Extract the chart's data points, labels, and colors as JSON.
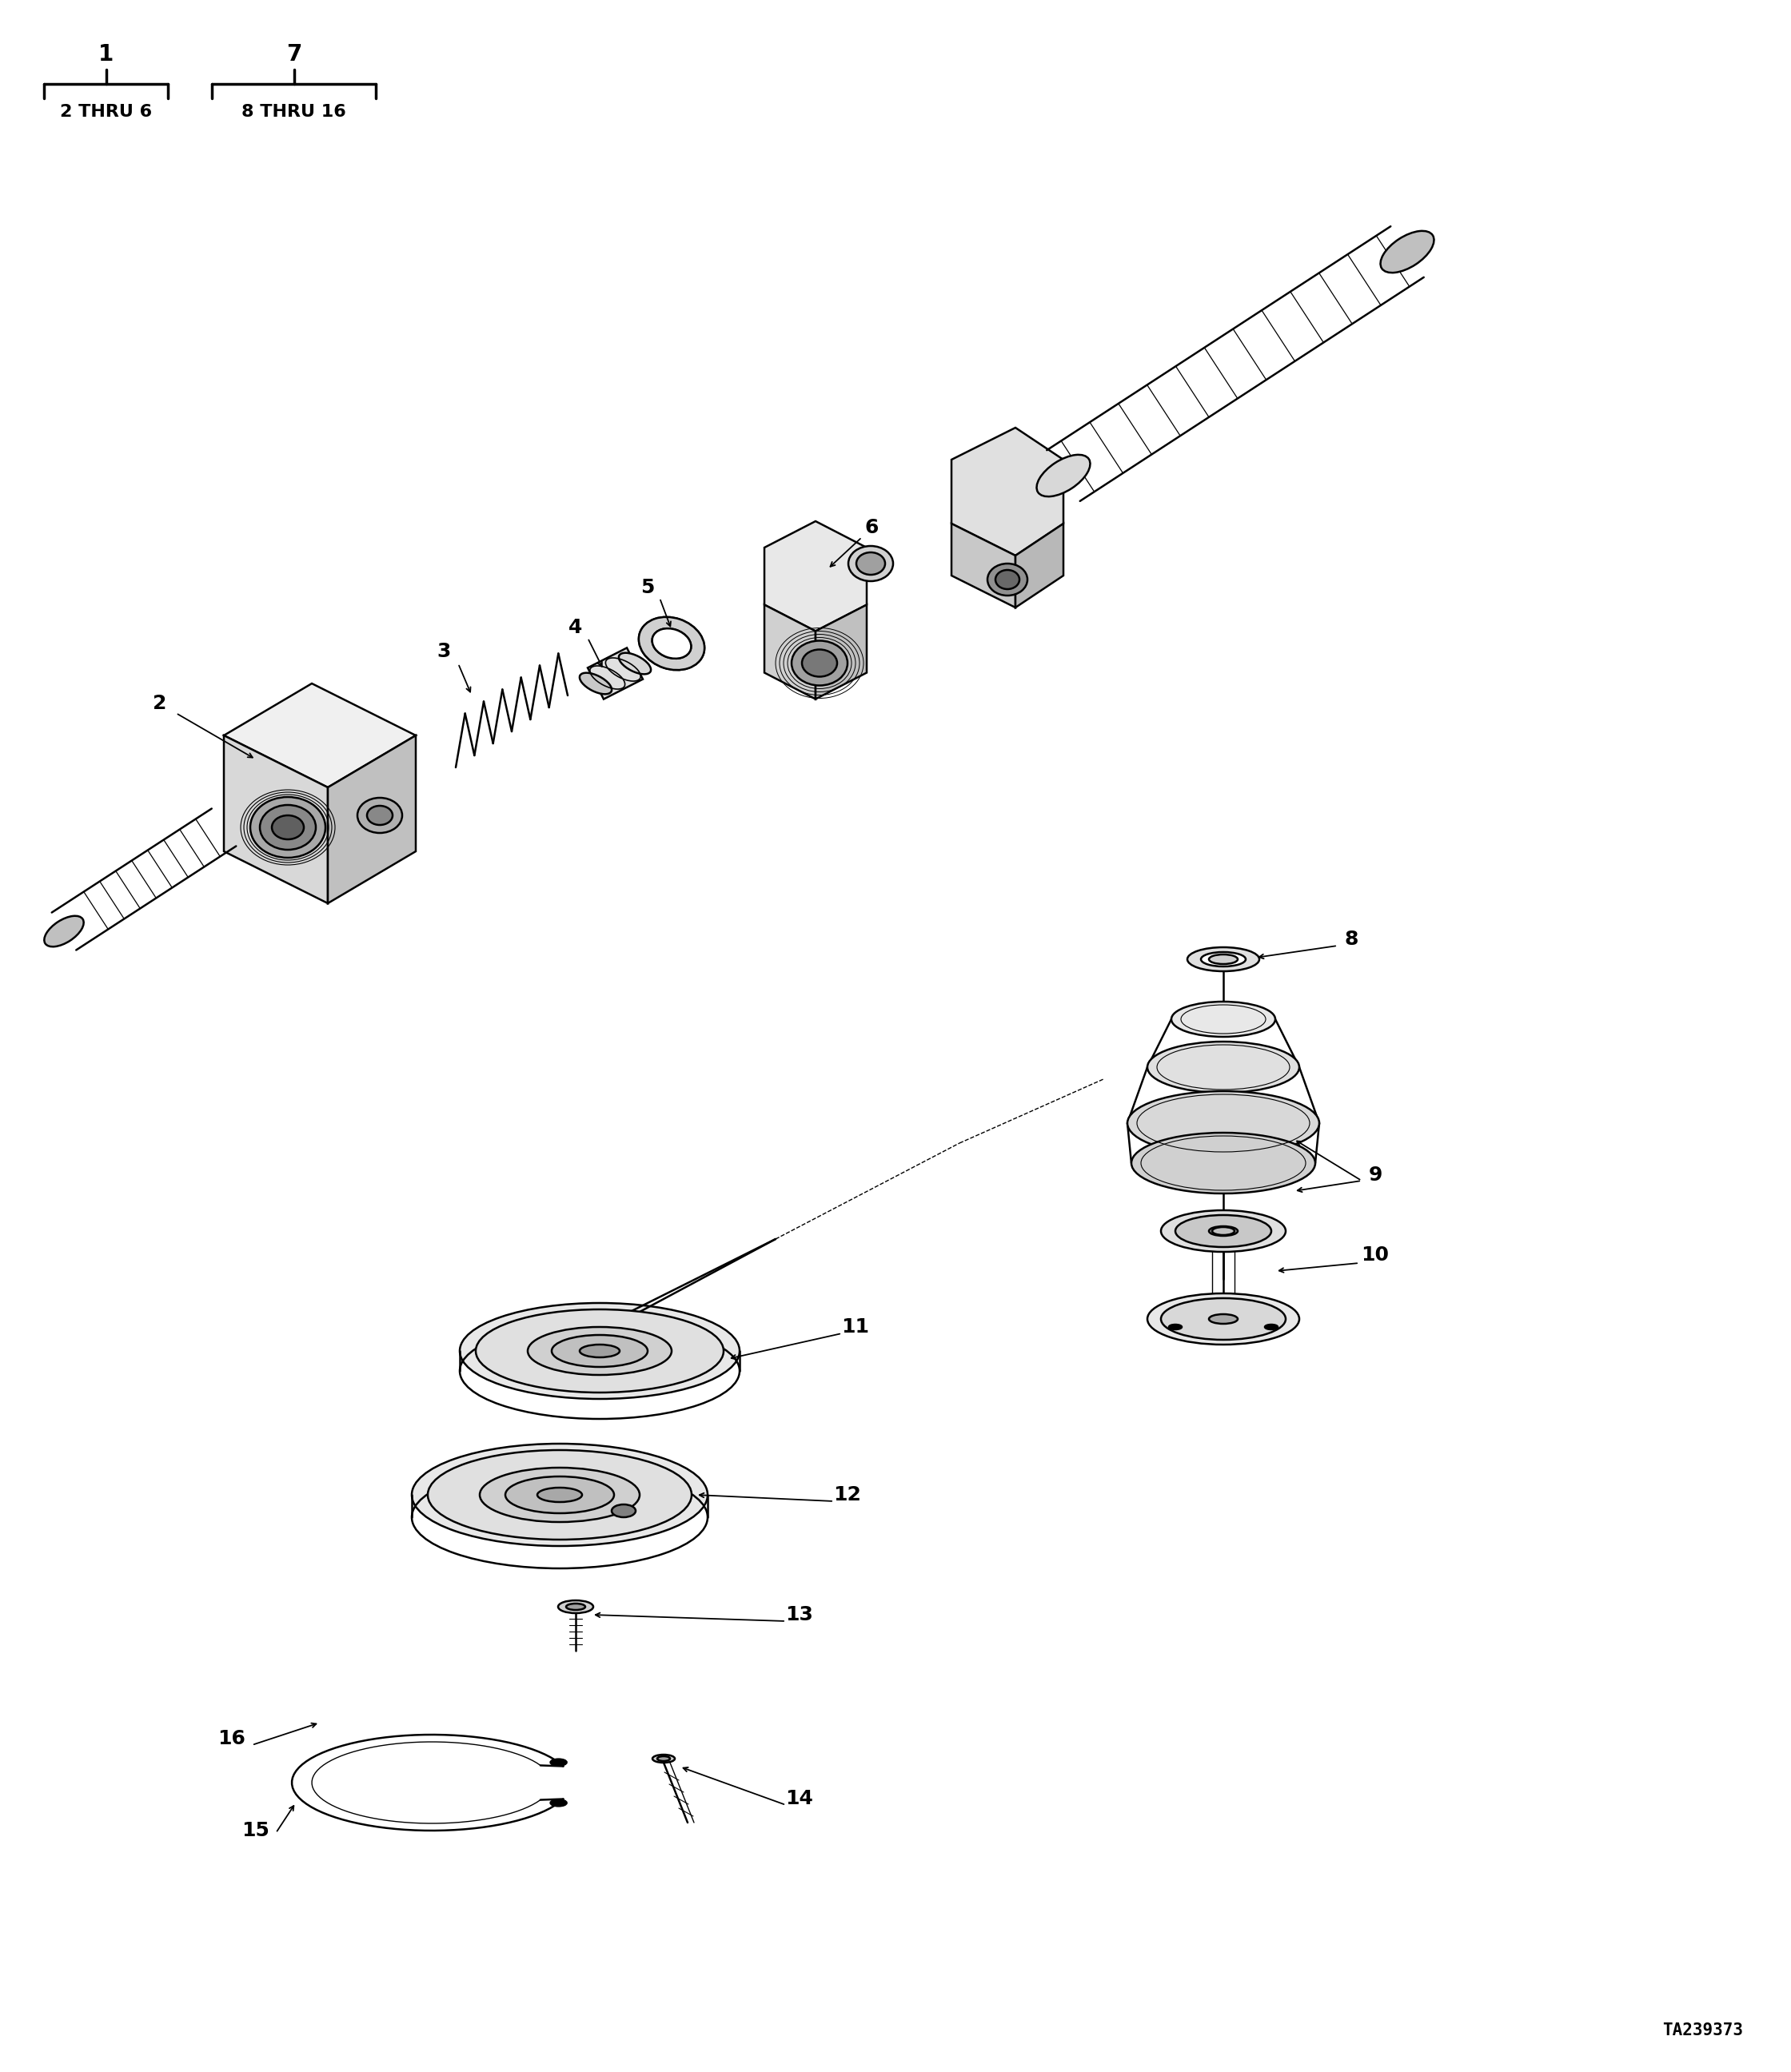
{
  "figure_id": "TA239373",
  "bg_color": "#ffffff",
  "line_color": "#000000",
  "lw_main": 1.8,
  "lw_thick": 2.5,
  "lw_thin": 1.0,
  "fontsize_label": 18,
  "fontsize_bracket": 16,
  "bracket1_num": "1",
  "bracket1_sub": "2 THRU 6",
  "bracket2_num": "7",
  "bracket2_sub": "8 THRU 16"
}
